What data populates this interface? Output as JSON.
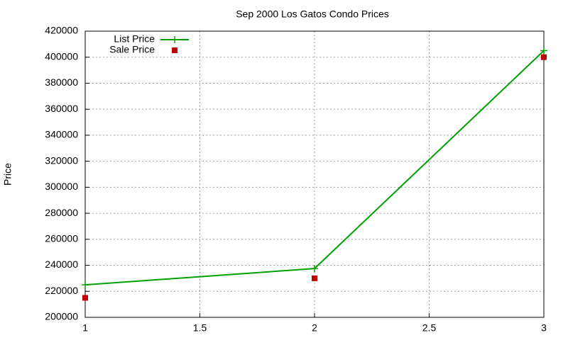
{
  "chart_data": {
    "type": "line",
    "title": "Sep 2000 Los Gatos Condo Prices",
    "y_label": "Price",
    "x": [
      1,
      2,
      3
    ],
    "series": [
      {
        "name": "List Price",
        "color": "#00a000",
        "values": [
          225000,
          237500,
          405000
        ],
        "style": "linespoints"
      },
      {
        "name": "Sale Price",
        "color": "#c00000",
        "values": [
          215000,
          230000,
          400000
        ],
        "style": "points"
      }
    ],
    "xlim": [
      1,
      3
    ],
    "xticks": [
      1,
      1.5,
      2,
      2.5,
      3
    ],
    "ylim": [
      200000,
      420000
    ],
    "yticks": [
      200000,
      220000,
      240000,
      260000,
      280000,
      300000,
      320000,
      340000,
      360000,
      380000,
      400000,
      420000
    ],
    "grid": true,
    "legend": "top-left"
  }
}
